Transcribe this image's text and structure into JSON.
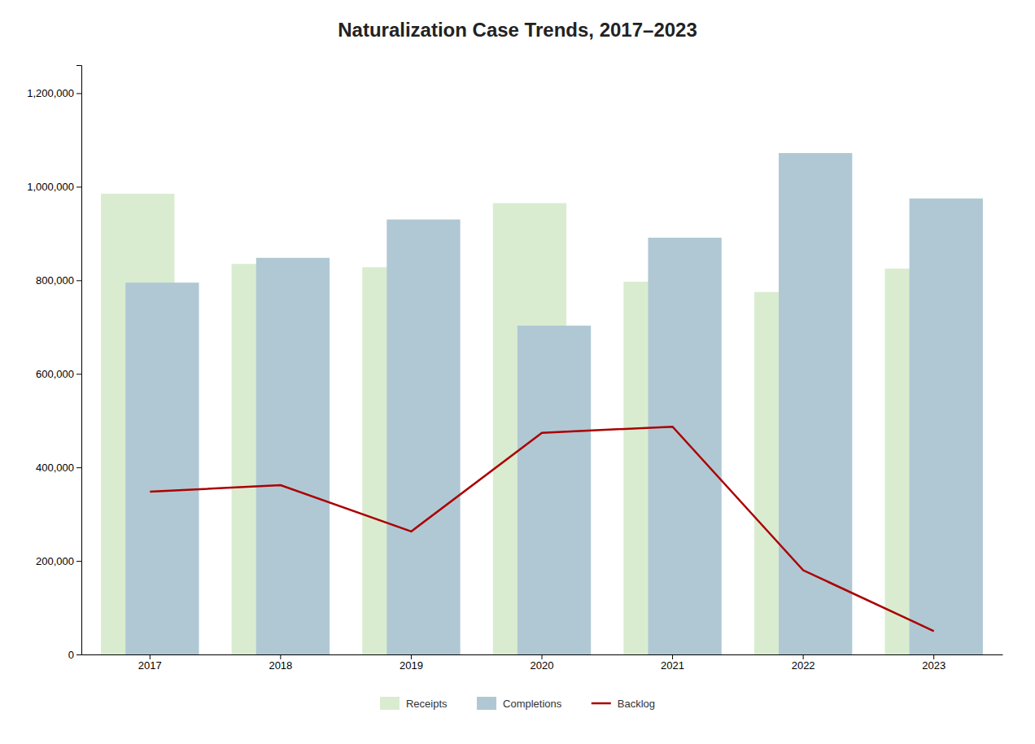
{
  "chart_data": {
    "type": "bar",
    "title": "Naturalization Case Trends, 2017–2023",
    "categories": [
      "2017",
      "2018",
      "2019",
      "2020",
      "2021",
      "2022",
      "2023"
    ],
    "series": [
      {
        "name": "Receipts",
        "type": "bar",
        "color": "#d9ecd0",
        "values": [
          985000,
          835000,
          828000,
          965000,
          797000,
          775000,
          825000
        ]
      },
      {
        "name": "Completions",
        "type": "bar",
        "color": "#b0c8d4",
        "values": [
          795000,
          848000,
          930000,
          703000,
          891000,
          1072000,
          975000
        ]
      },
      {
        "name": "Backlog",
        "type": "line",
        "color": "#aa0000",
        "values": [
          348000,
          362000,
          263000,
          474000,
          487000,
          180000,
          50000
        ]
      }
    ],
    "ylim": [
      0,
      1260000
    ],
    "yticks": [
      0,
      {
        "value": 200000,
        "label": "200,000"
      },
      {
        "value": 400000,
        "label": "400,000"
      },
      {
        "value": 600000,
        "label": "600,000"
      },
      {
        "value": 800000,
        "label": "800,000"
      },
      {
        "value": 1000000,
        "label": "1,000,000"
      },
      {
        "value": 1200000,
        "label": "1,200,000"
      }
    ],
    "grid": false,
    "legend": "bottom"
  }
}
